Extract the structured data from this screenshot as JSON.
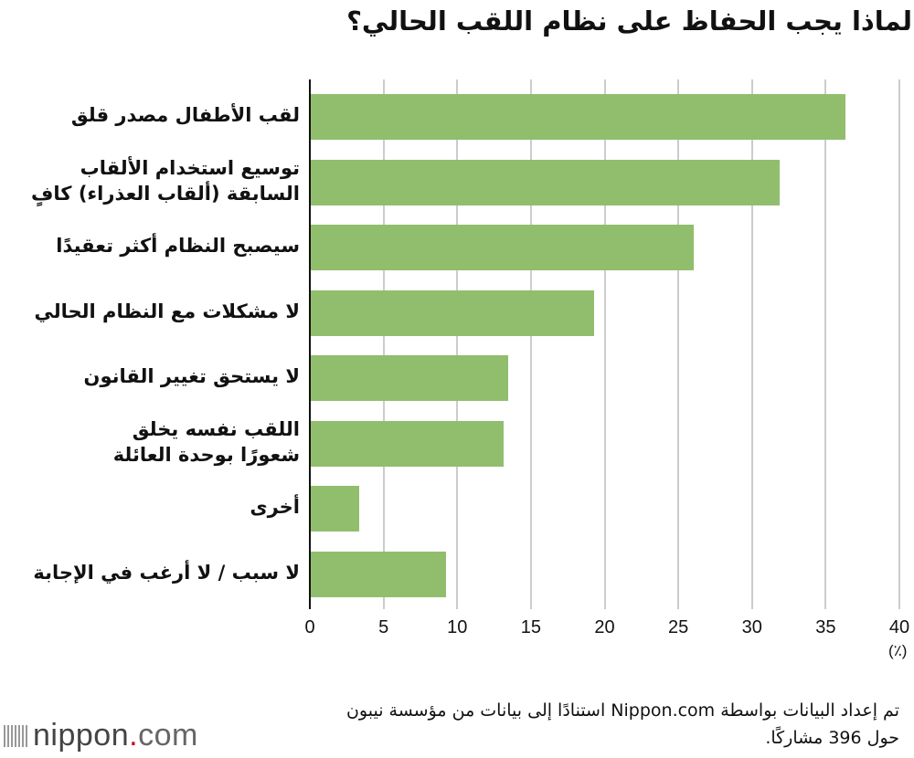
{
  "title": "لماذا يجب الحفاظ على نظام اللقب الحالي؟",
  "chart_data": {
    "type": "bar",
    "orientation": "horizontal",
    "title": "لماذا يجب الحفاظ على نظام اللقب الحالي؟",
    "categories": [
      "لقب الأطفال مصدر قلق",
      "توسيع استخدام الألقاب السابقة (ألقاب العذراء) كافٍ",
      "سيصبح النظام أكثر تعقيدًا",
      "لا مشكلات مع النظام الحالي",
      "لا يستحق تغيير القانون",
      "اللقب نفسه يخلق شعورًا بوحدة العائلة",
      "أخرى",
      "لا سبب / لا أرغب في الإجابة"
    ],
    "values": [
      36.3,
      31.8,
      26.0,
      19.2,
      13.4,
      13.1,
      3.3,
      9.2
    ],
    "xlabel": "(٪)",
    "ylabel": "",
    "xlim": [
      0,
      40
    ],
    "xticks": [
      "0",
      "5",
      "10",
      "15",
      "20",
      "25",
      "30",
      "35",
      "40"
    ],
    "grid": true,
    "bar_color": "#90be6d"
  },
  "labels": [
    [
      "لقب الأطفال مصدر قلق"
    ],
    [
      "توسيع استخدام الألقاب",
      "السابقة (ألقاب العذراء) كافٍ"
    ],
    [
      "سيصبح النظام أكثر تعقيدًا"
    ],
    [
      "لا مشكلات مع النظام الحالي"
    ],
    [
      "لا يستحق تغيير القانون"
    ],
    [
      "اللقب نفسه يخلق",
      "شعورًا بوحدة العائلة"
    ],
    [
      "أخرى"
    ],
    [
      "لا سبب / لا أرغب في الإجابة"
    ]
  ],
  "unit": "(٪)",
  "source": {
    "line1": "تم إعداد البيانات بواسطة Nippon.com استنادًا إلى بيانات من مؤسسة نيبون",
    "line2": "حول 396 مشاركًا."
  },
  "logo": {
    "name": "nippon",
    "dot": ".",
    "suffix": "com"
  }
}
